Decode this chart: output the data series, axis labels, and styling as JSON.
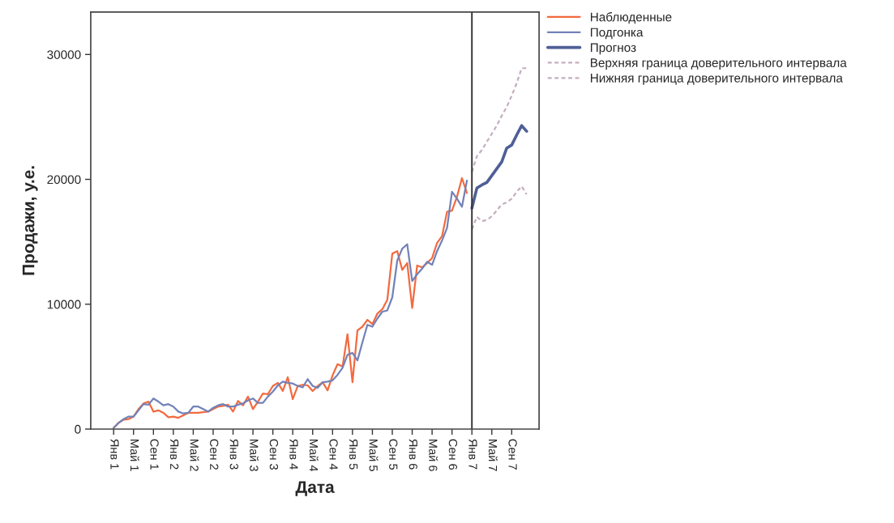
{
  "chart_data": {
    "type": "line",
    "xlabel": "Дата",
    "ylabel": "Продажи, у.е.",
    "categories": [
      "Янв 1",
      null,
      null,
      null,
      "Май 1",
      null,
      null,
      null,
      "Сен 1",
      null,
      null,
      null,
      "Янв 2",
      null,
      null,
      null,
      "Май 2",
      null,
      null,
      null,
      "Сен 2",
      null,
      null,
      null,
      "Янв 3",
      null,
      null,
      null,
      "Май 3",
      null,
      null,
      null,
      "Сен 3",
      null,
      null,
      null,
      "Янв 4",
      null,
      null,
      null,
      "Май 4",
      null,
      null,
      null,
      "Сен 4",
      null,
      null,
      null,
      "Янв 5",
      null,
      null,
      null,
      "Май 5",
      null,
      null,
      null,
      "Сен 5",
      null,
      null,
      null,
      "Янв 6",
      null,
      null,
      null,
      "Май 6",
      null,
      null,
      null,
      "Сен 6",
      null,
      null,
      null,
      "Янв 7",
      null,
      null,
      null,
      "Май 7",
      null,
      null,
      null,
      "Сен 7",
      null,
      null,
      null
    ],
    "series": [
      {
        "name": "Наблюденные",
        "color": "#f26a3f",
        "line_style": "solid",
        "values": [
          100,
          500,
          750,
          800,
          1000,
          1600,
          2050,
          2200,
          1400,
          1500,
          1300,
          950,
          1000,
          900,
          1100,
          1300,
          1300,
          1300,
          1350,
          1400,
          1600,
          1800,
          1850,
          1950,
          1400,
          2250,
          1900,
          2600,
          1600,
          2200,
          2850,
          2800,
          3450,
          3700,
          3050,
          4150,
          2400,
          3450,
          3550,
          3500,
          3050,
          3450,
          3750,
          3100,
          4300,
          5200,
          5000,
          7600,
          3750,
          7900,
          8200,
          8750,
          8400,
          9250,
          9600,
          10350,
          14050,
          14250,
          12750,
          13300,
          9700,
          13100,
          12950,
          13300,
          13700,
          14900,
          15450,
          17400,
          17500,
          18600,
          20100,
          18900,
          null,
          null,
          null,
          null,
          null,
          null,
          null,
          null,
          null,
          null,
          null,
          null
        ]
      },
      {
        "name": "Подгонка",
        "color": "#7282b8",
        "line_style": "solid",
        "values": [
          100,
          500,
          800,
          1000,
          1000,
          1500,
          2000,
          1950,
          2450,
          2200,
          1900,
          2000,
          1800,
          1400,
          1250,
          1300,
          1800,
          1800,
          1600,
          1400,
          1700,
          1900,
          2000,
          1800,
          1800,
          1950,
          2050,
          2300,
          2450,
          2100,
          2100,
          2600,
          3000,
          3500,
          3800,
          3700,
          3650,
          3450,
          3350,
          4000,
          3450,
          3300,
          3750,
          3800,
          3900,
          4350,
          4900,
          5950,
          6100,
          5500,
          6950,
          8350,
          8200,
          8850,
          9400,
          9500,
          10550,
          13500,
          14450,
          14800,
          11850,
          12400,
          12850,
          13400,
          13150,
          14250,
          15100,
          16100,
          19000,
          18450,
          17800,
          19900,
          null,
          null,
          null,
          null,
          null,
          null,
          null,
          null,
          null,
          null,
          null,
          null
        ]
      },
      {
        "name": "Прогноз",
        "color": "#4f5f96",
        "line_style": "solid",
        "values": [
          null,
          null,
          null,
          null,
          null,
          null,
          null,
          null,
          null,
          null,
          null,
          null,
          null,
          null,
          null,
          null,
          null,
          null,
          null,
          null,
          null,
          null,
          null,
          null,
          null,
          null,
          null,
          null,
          null,
          null,
          null,
          null,
          null,
          null,
          null,
          null,
          null,
          null,
          null,
          null,
          null,
          null,
          null,
          null,
          null,
          null,
          null,
          null,
          null,
          null,
          null,
          null,
          null,
          null,
          null,
          null,
          null,
          null,
          null,
          null,
          null,
          null,
          null,
          null,
          null,
          null,
          null,
          null,
          null,
          null,
          null,
          null,
          17700,
          19300,
          19550,
          19750,
          20300,
          20850,
          21400,
          22500,
          22750,
          23550,
          24300,
          23850
        ]
      },
      {
        "name": "Верхняя граница доверительного интервала",
        "color": "#c4aebf",
        "line_style": "dashed",
        "values": [
          null,
          null,
          null,
          null,
          null,
          null,
          null,
          null,
          null,
          null,
          null,
          null,
          null,
          null,
          null,
          null,
          null,
          null,
          null,
          null,
          null,
          null,
          null,
          null,
          null,
          null,
          null,
          null,
          null,
          null,
          null,
          null,
          null,
          null,
          null,
          null,
          null,
          null,
          null,
          null,
          null,
          null,
          null,
          null,
          null,
          null,
          null,
          null,
          null,
          null,
          null,
          null,
          null,
          null,
          null,
          null,
          null,
          null,
          null,
          null,
          null,
          null,
          null,
          null,
          null,
          null,
          null,
          null,
          null,
          null,
          null,
          null,
          20600,
          21850,
          22350,
          23000,
          23650,
          24300,
          25100,
          25800,
          26700,
          27700,
          28900,
          28900
        ]
      },
      {
        "name": "Нижняя граница доверительного интервала",
        "color": "#c4aebf",
        "line_style": "dashed",
        "values": [
          null,
          null,
          null,
          null,
          null,
          null,
          null,
          null,
          null,
          null,
          null,
          null,
          null,
          null,
          null,
          null,
          null,
          null,
          null,
          null,
          null,
          null,
          null,
          null,
          null,
          null,
          null,
          null,
          null,
          null,
          null,
          null,
          null,
          null,
          null,
          null,
          null,
          null,
          null,
          null,
          null,
          null,
          null,
          null,
          null,
          null,
          null,
          null,
          null,
          null,
          null,
          null,
          null,
          null,
          null,
          null,
          null,
          null,
          null,
          null,
          null,
          null,
          null,
          null,
          null,
          null,
          null,
          null,
          null,
          null,
          null,
          null,
          16000,
          17000,
          16650,
          16750,
          17050,
          17500,
          18000,
          18150,
          18450,
          19000,
          19450,
          18800
        ]
      }
    ],
    "ylim": [
      0,
      33400
    ],
    "yticks": [
      0,
      10000,
      20000,
      30000
    ],
    "ref_lines": [
      {
        "axis": "x",
        "value": "Янв 7",
        "color": "#333333"
      }
    ],
    "grid": false,
    "legend": "top right",
    "marker": "none"
  }
}
